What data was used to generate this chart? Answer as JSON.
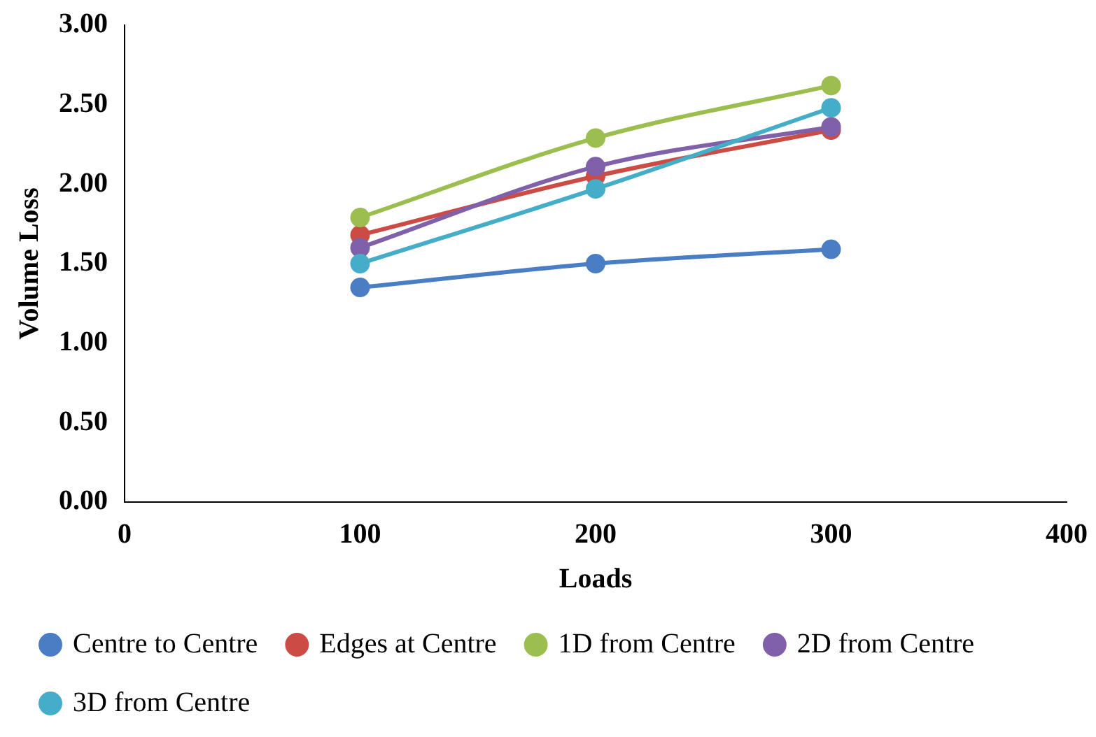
{
  "chart_data": {
    "type": "line",
    "xlabel": "Loads",
    "ylabel": "Volume Loss",
    "x": [
      100,
      200,
      300
    ],
    "xlim": [
      0,
      400
    ],
    "xticks": [
      0,
      100,
      200,
      300,
      400
    ],
    "ylim": [
      0,
      3
    ],
    "yticks": [
      {
        "value": 0,
        "label": "0.00"
      },
      {
        "value": 0.5,
        "label": "0.50"
      },
      {
        "value": 1,
        "label": "1.00"
      },
      {
        "value": 1.5,
        "label": "1.50"
      },
      {
        "value": 2,
        "label": "2.00"
      },
      {
        "value": 2.5,
        "label": "2.50"
      },
      {
        "value": 3,
        "label": "3.00"
      }
    ],
    "grid": false,
    "legend": "bottom",
    "marker": "circle",
    "line_style": "solid",
    "series": [
      {
        "name": "Centre to Centre",
        "color": "#4a7ec4",
        "values": [
          1.35,
          1.5,
          1.59
        ]
      },
      {
        "name": "Edges at Centre",
        "color": "#cc4b45",
        "values": [
          1.68,
          2.05,
          2.34
        ]
      },
      {
        "name": "1D from Centre",
        "color": "#9bbe4f",
        "values": [
          1.79,
          2.29,
          2.62
        ]
      },
      {
        "name": "2D from Centre",
        "color": "#8060a8",
        "values": [
          1.6,
          2.11,
          2.36
        ]
      },
      {
        "name": "3D from Centre",
        "color": "#45adc8",
        "values": [
          1.5,
          1.97,
          2.48
        ]
      }
    ]
  }
}
